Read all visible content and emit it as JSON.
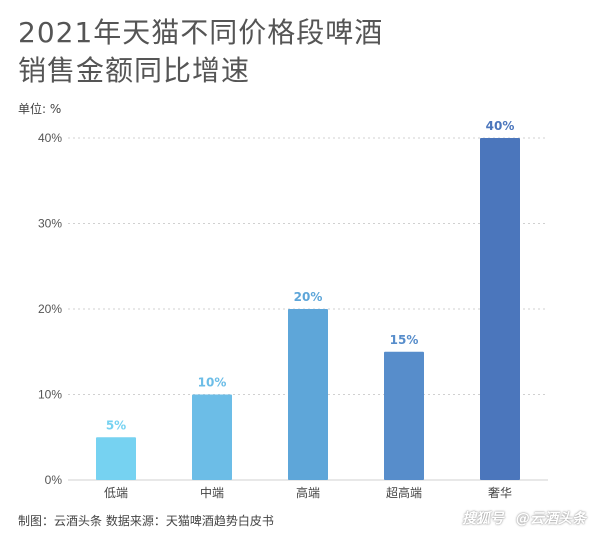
{
  "title_line1": "2021年天猫不同价格段啤酒",
  "title_line2": "销售金额同比增速",
  "unit_label": "单位: %",
  "footer": "制图：云酒头条  数据来源：天猫啤酒趋势白皮书",
  "watermark": {
    "left": "搜狐号",
    "right": "@云酒头条"
  },
  "chart_data": {
    "type": "bar",
    "title": "2021年天猫不同价格段啤酒销售金额同比增速",
    "ylabel": "单位: %",
    "categories": [
      "低端",
      "中端",
      "高端",
      "超高端",
      "奢华"
    ],
    "values": [
      5,
      10,
      20,
      15,
      40
    ],
    "value_labels": [
      "5%",
      "10%",
      "20%",
      "15%",
      "40%"
    ],
    "yticks": [
      0,
      10,
      20,
      30,
      40
    ],
    "ytick_labels": [
      "0%",
      "10%",
      "20%",
      "30%",
      "40%"
    ],
    "ylim": [
      0,
      40
    ],
    "grid": true,
    "colors": [
      "#76d2f1",
      "#6cbde7",
      "#5ea6d9",
      "#578dcb",
      "#4b76bc"
    ],
    "label_colors": [
      "#76d2f1",
      "#6cbde7",
      "#5ea6d9",
      "#578dcb",
      "#4b76bc"
    ]
  }
}
